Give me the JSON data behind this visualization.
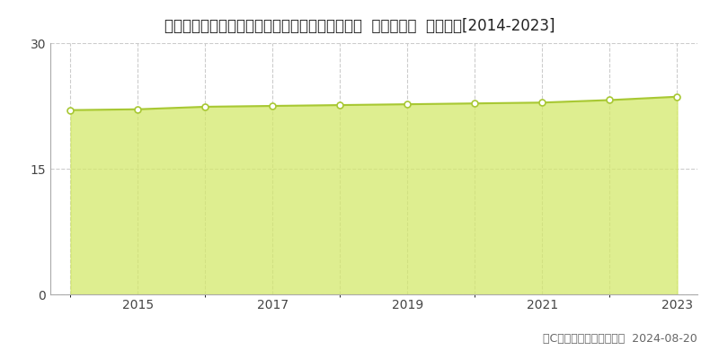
{
  "title": "愛知県愛知郡東郷町大字諸輪字観音畑６０番１外  基準地価格  地価推移[2014-2023]",
  "years": [
    2014,
    2015,
    2016,
    2017,
    2018,
    2019,
    2020,
    2021,
    2022,
    2023
  ],
  "values": [
    22.0,
    22.1,
    22.4,
    22.5,
    22.6,
    22.7,
    22.8,
    22.9,
    23.2,
    23.6
  ],
  "ylim": [
    0,
    30
  ],
  "yticks": [
    0,
    15,
    30
  ],
  "fill_color": "#d4e96b",
  "fill_alpha": 0.75,
  "line_color": "#a8c834",
  "line_width": 1.5,
  "marker_color": "white",
  "marker_edge_color": "#a8c834",
  "marker_size": 5,
  "grid_color": "#cccccc",
  "grid_style": "--",
  "background_color": "#ffffff",
  "legend_marker_color": "#c8e832",
  "copyright_text": "（C）土地価格ドットコム  2024-08-20",
  "xlabel_years": [
    2015,
    2017,
    2019,
    2021,
    2023
  ],
  "all_years": [
    2014,
    2015,
    2016,
    2017,
    2018,
    2019,
    2020,
    2021,
    2022,
    2023
  ],
  "title_fontsize": 12,
  "tick_fontsize": 10,
  "legend_fontsize": 10,
  "copyright_fontsize": 9,
  "spine_color": "#aaaaaa"
}
